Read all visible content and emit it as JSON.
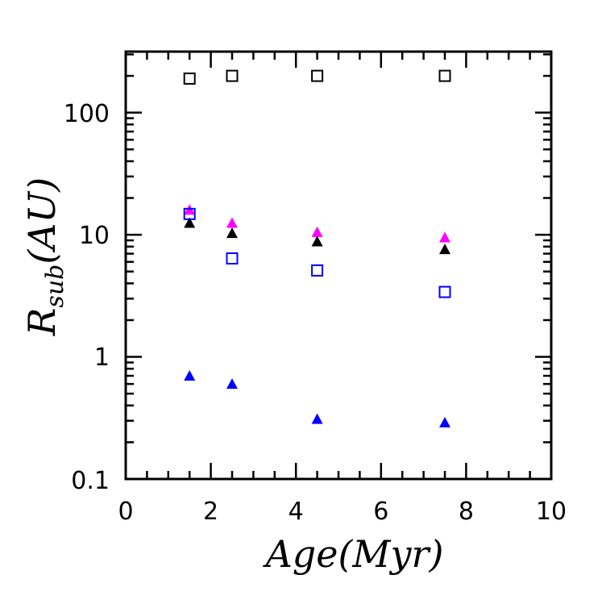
{
  "chart_data": {
    "type": "scatter",
    "title": "",
    "xlabel": "Age(Myr)",
    "ylabel": "R_sub(AU)",
    "ylabel_parts": {
      "main": "R",
      "sub": "sub",
      "rest": "(AU)"
    },
    "xlim": [
      0,
      10
    ],
    "ylim": [
      0.1,
      316
    ],
    "yscale": "log",
    "grid": false,
    "x_ticks": [
      "0",
      "2",
      "4",
      "6",
      "8",
      "10"
    ],
    "y_ticks": [
      "0.1",
      "1",
      "10",
      "100"
    ],
    "series": [
      {
        "name": "black-open-square",
        "marker": "square-open",
        "color": "#000000",
        "points": [
          [
            1.5,
            190
          ],
          [
            2.5,
            200
          ],
          [
            4.5,
            200
          ],
          [
            7.5,
            200
          ]
        ]
      },
      {
        "name": "magenta-filled-triangle",
        "marker": "triangle-filled",
        "color": "#ff00ff",
        "points": [
          [
            1.5,
            16
          ],
          [
            2.5,
            12.5
          ],
          [
            4.5,
            10.5
          ],
          [
            7.5,
            9.5
          ]
        ]
      },
      {
        "name": "black-filled-triangle",
        "marker": "triangle-filled",
        "color": "#000000",
        "points": [
          [
            1.5,
            12.5
          ],
          [
            2.5,
            10.3
          ],
          [
            4.5,
            8.8
          ],
          [
            7.5,
            7.6
          ]
        ]
      },
      {
        "name": "blue-open-square",
        "marker": "square-open",
        "color": "#0000ff",
        "points": [
          [
            1.5,
            14.8
          ],
          [
            2.5,
            6.4
          ],
          [
            4.5,
            5.1
          ],
          [
            7.5,
            3.4
          ]
        ]
      },
      {
        "name": "blue-filled-triangle",
        "marker": "triangle-filled",
        "color": "#0000ff",
        "points": [
          [
            1.5,
            0.7
          ],
          [
            2.5,
            0.6
          ],
          [
            4.5,
            0.31
          ],
          [
            7.5,
            0.29
          ]
        ]
      }
    ]
  }
}
